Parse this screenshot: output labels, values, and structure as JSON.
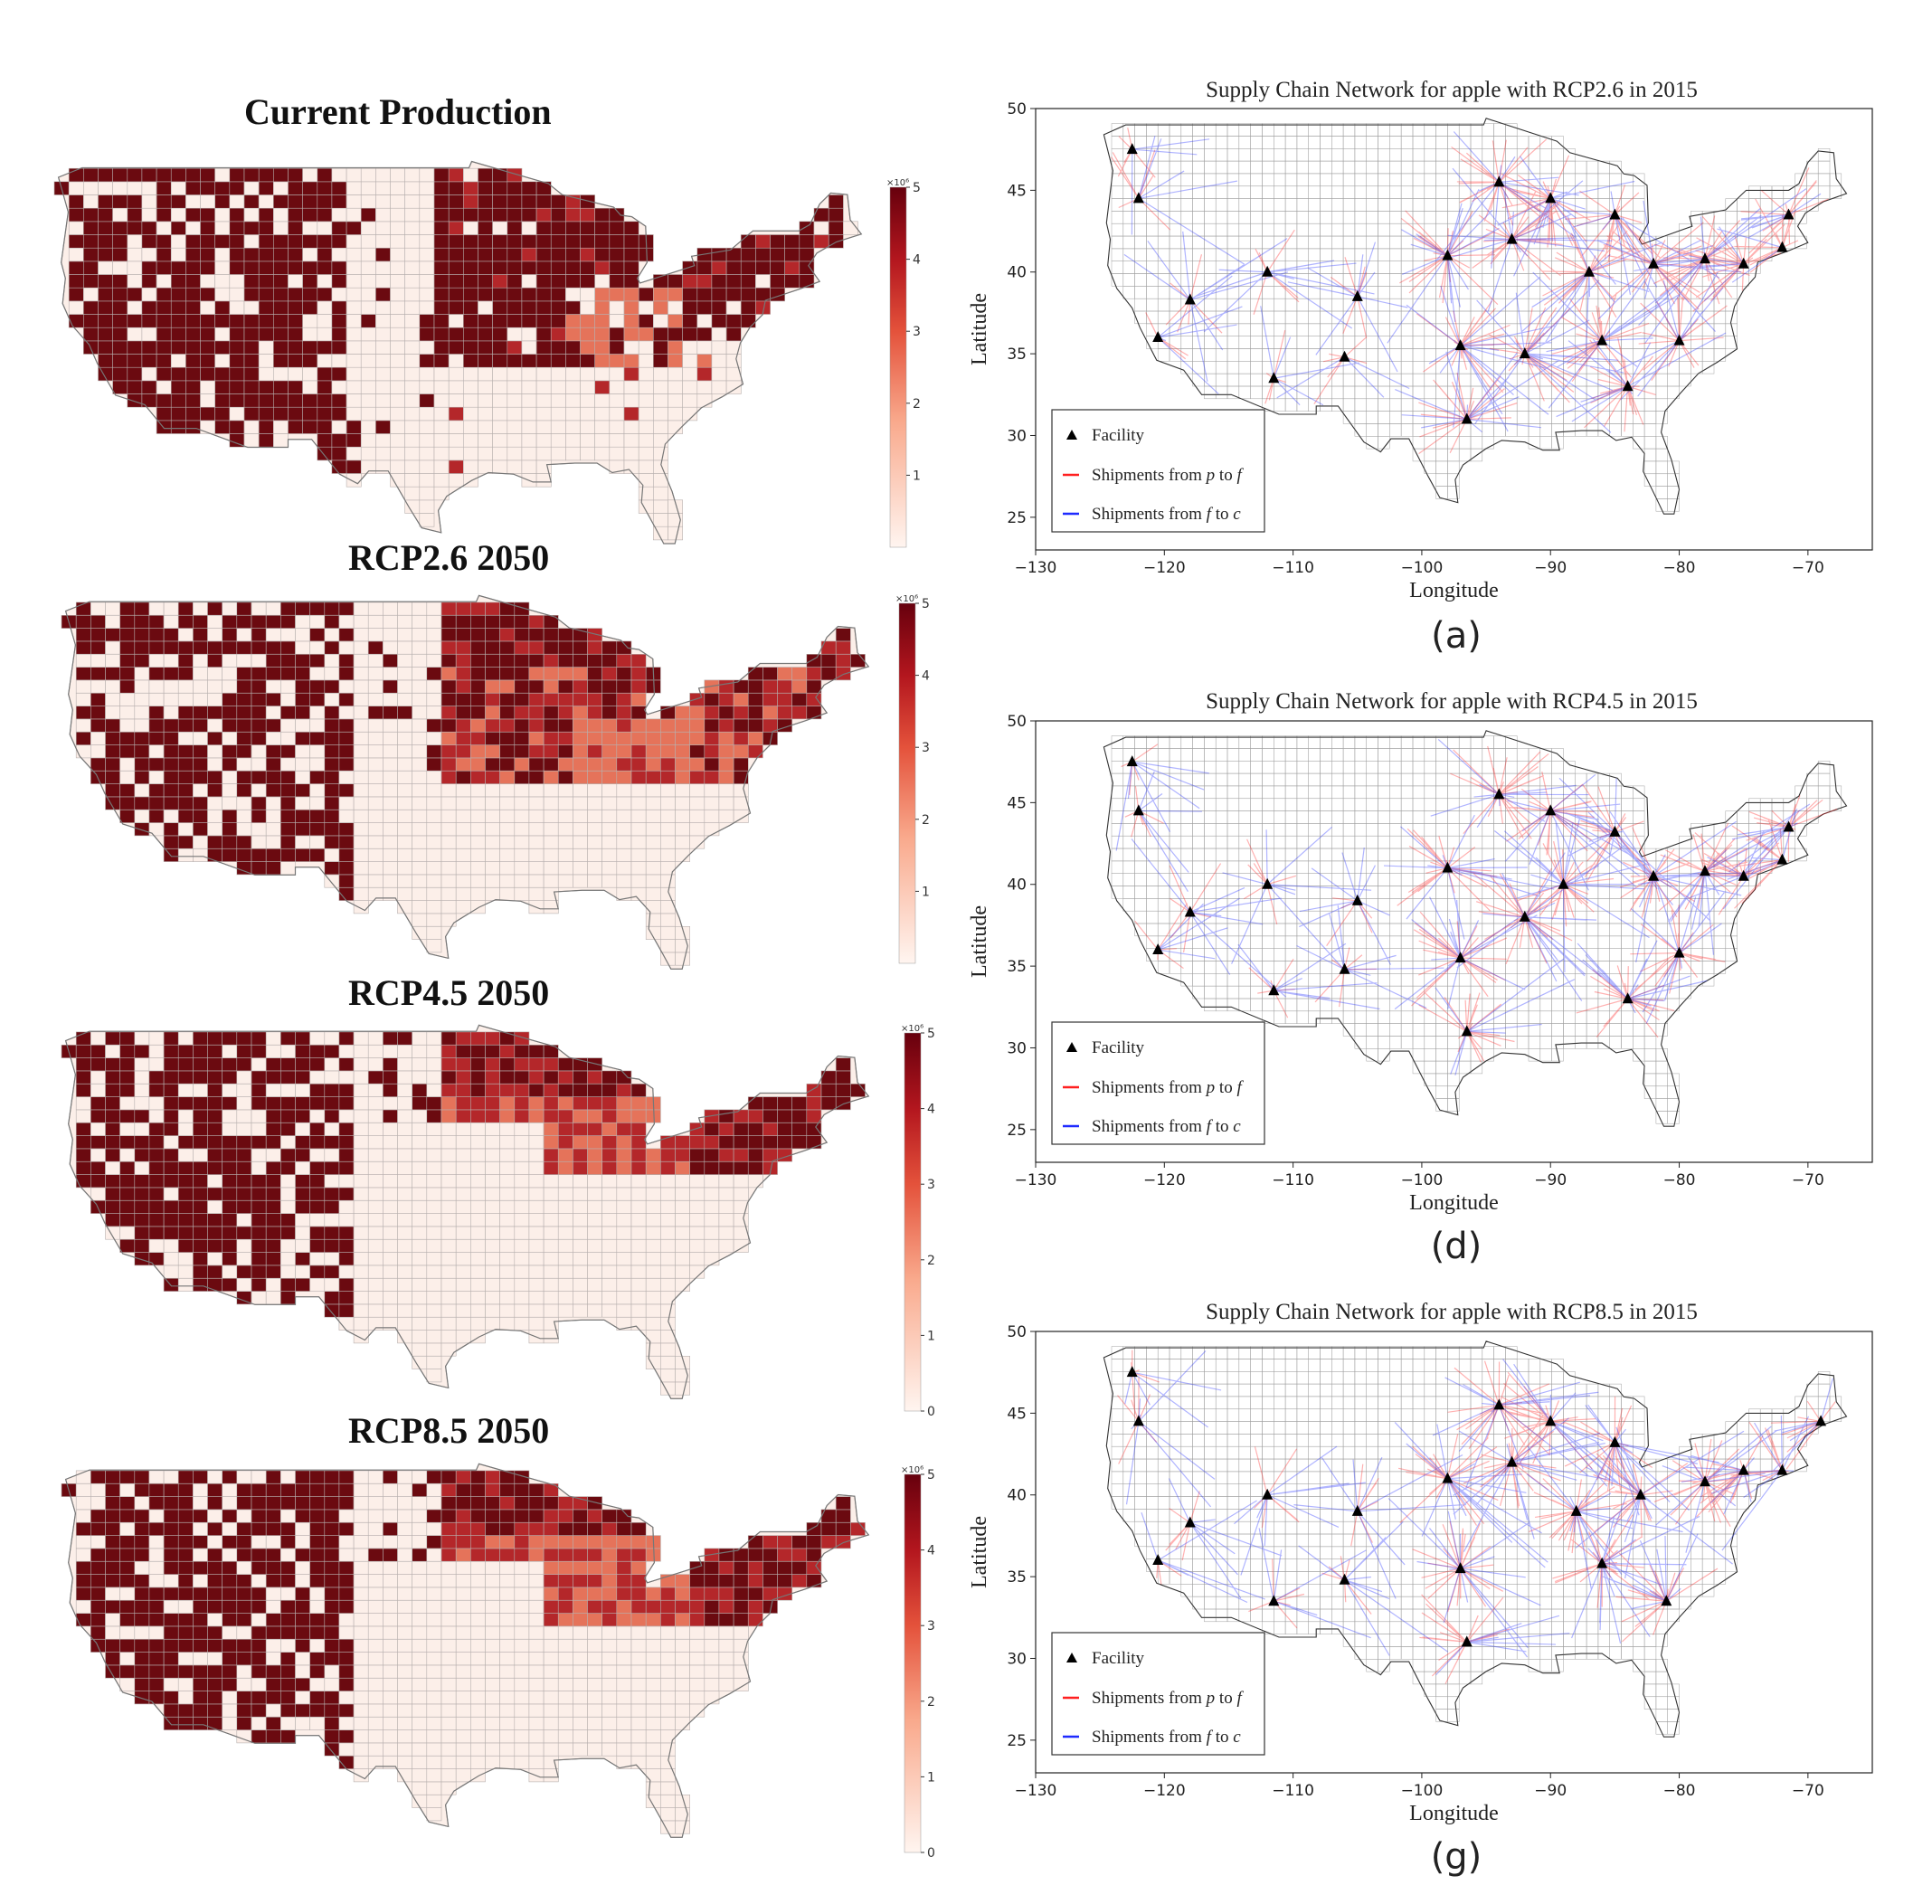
{
  "left_maps": [
    {
      "title": "Current Production",
      "colorbar_ticks": [
        "5",
        "4",
        "3",
        "2",
        "1"
      ],
      "colorbar_exponent": "×10⁶",
      "scenario": "current"
    },
    {
      "title": "RCP2.6 2050",
      "colorbar_ticks": [
        "5",
        "4",
        "3",
        "2",
        "1"
      ],
      "colorbar_exponent": "×10⁶",
      "scenario": "rcp26"
    },
    {
      "title": "RCP4.5 2050",
      "colorbar_ticks": [
        "5",
        "4",
        "3",
        "2",
        "1",
        "0"
      ],
      "colorbar_exponent": "×10⁶",
      "scenario": "rcp45"
    },
    {
      "title": "RCP8.5 2050",
      "colorbar_ticks": [
        "5",
        "4",
        "3",
        "2",
        "1",
        "0"
      ],
      "colorbar_exponent": "×10⁶",
      "scenario": "rcp85"
    }
  ],
  "network_maps": [
    {
      "title": "Supply Chain Network for apple with RCP2.6 in 2015",
      "panel_label": "(a)"
    },
    {
      "title": "Supply Chain Network for apple with RCP4.5 in 2015",
      "panel_label": "(d)"
    },
    {
      "title": "Supply Chain Network for apple with RCP8.5 in 2015",
      "panel_label": "(g)"
    }
  ],
  "axes": {
    "xlabel": "Longitude",
    "ylabel": "Latitude",
    "xticks": [
      "−130",
      "−120",
      "−110",
      "−100",
      "−90",
      "−80",
      "−70"
    ],
    "yticks": [
      "50",
      "45",
      "40",
      "35",
      "30",
      "25"
    ],
    "xlim": [
      -130,
      -65
    ],
    "ylim": [
      23,
      50
    ]
  },
  "legend": {
    "facility": "Facility",
    "p_to_f_prefix": "Shipments from ",
    "p_var": "p",
    "to_word": " to ",
    "f_var": "f",
    "f_to_c_prefix": "Shipments from ",
    "f_var2": "f",
    "to_word2": " to ",
    "c_var": "c"
  },
  "colors": {
    "dark_red": "#6b0a10",
    "mid_red": "#b4272a",
    "light_red": "#e5735a",
    "pale": "#fcefe9",
    "shipment_pf": "#ff2020",
    "shipment_fc": "#1f2bff"
  },
  "chart_data": [
    {
      "type": "scatter",
      "title": "Supply Chain Network for apple with RCP2.6 in 2015",
      "xlabel": "Longitude",
      "ylabel": "Latitude",
      "xlim": [
        -130,
        -65
      ],
      "ylim": [
        23,
        50
      ],
      "series": [
        {
          "name": "Facility",
          "x": [
            -122.5,
            -122,
            -120.5,
            -118,
            -112,
            -111.5,
            -106,
            -105,
            -98,
            -97,
            -96.5,
            -94,
            -93,
            -92,
            -90,
            -87,
            -86,
            -85,
            -84,
            -82,
            -80,
            -78,
            -75,
            -72,
            -71.5
          ],
          "y": [
            47.5,
            44.5,
            36,
            38.3,
            40,
            33.5,
            34.8,
            38.5,
            41,
            35.5,
            31,
            45.5,
            42,
            35,
            44.5,
            40,
            35.8,
            43.5,
            33,
            40.5,
            35.8,
            40.8,
            40.5,
            41.5,
            43.5
          ]
        }
      ]
    },
    {
      "type": "scatter",
      "title": "Supply Chain Network for apple with RCP4.5 in 2015",
      "xlabel": "Longitude",
      "ylabel": "Latitude",
      "xlim": [
        -130,
        -65
      ],
      "ylim": [
        23,
        50
      ],
      "series": [
        {
          "name": "Facility",
          "x": [
            -122.5,
            -122,
            -120.5,
            -118,
            -112,
            -111.5,
            -106,
            -105,
            -98,
            -97,
            -96.5,
            -94,
            -92,
            -90,
            -89,
            -85,
            -84,
            -82,
            -80,
            -78,
            -75,
            -72,
            -71.5
          ],
          "y": [
            47.5,
            44.5,
            36,
            38.3,
            40,
            33.5,
            34.8,
            39,
            41,
            35.5,
            31,
            45.5,
            38,
            44.5,
            40,
            43.2,
            33,
            40.5,
            35.8,
            40.8,
            40.5,
            41.5,
            43.5
          ]
        }
      ]
    },
    {
      "type": "scatter",
      "title": "Supply Chain Network for apple with RCP8.5 in 2015",
      "xlabel": "Longitude",
      "ylabel": "Latitude",
      "xlim": [
        -130,
        -65
      ],
      "ylim": [
        23,
        50
      ],
      "series": [
        {
          "name": "Facility",
          "x": [
            -122.5,
            -122,
            -120.5,
            -118,
            -112,
            -111.5,
            -106,
            -105,
            -98,
            -97,
            -96.5,
            -94,
            -93,
            -90,
            -88,
            -86,
            -85,
            -83,
            -81,
            -78,
            -75,
            -72,
            -69
          ],
          "y": [
            47.5,
            44.5,
            36,
            38.3,
            40,
            33.5,
            34.8,
            39,
            41,
            35.5,
            31,
            45.5,
            42,
            44.5,
            39,
            35.8,
            43.2,
            40,
            33.5,
            40.8,
            41.5,
            41.5,
            44.5
          ]
        }
      ]
    }
  ]
}
